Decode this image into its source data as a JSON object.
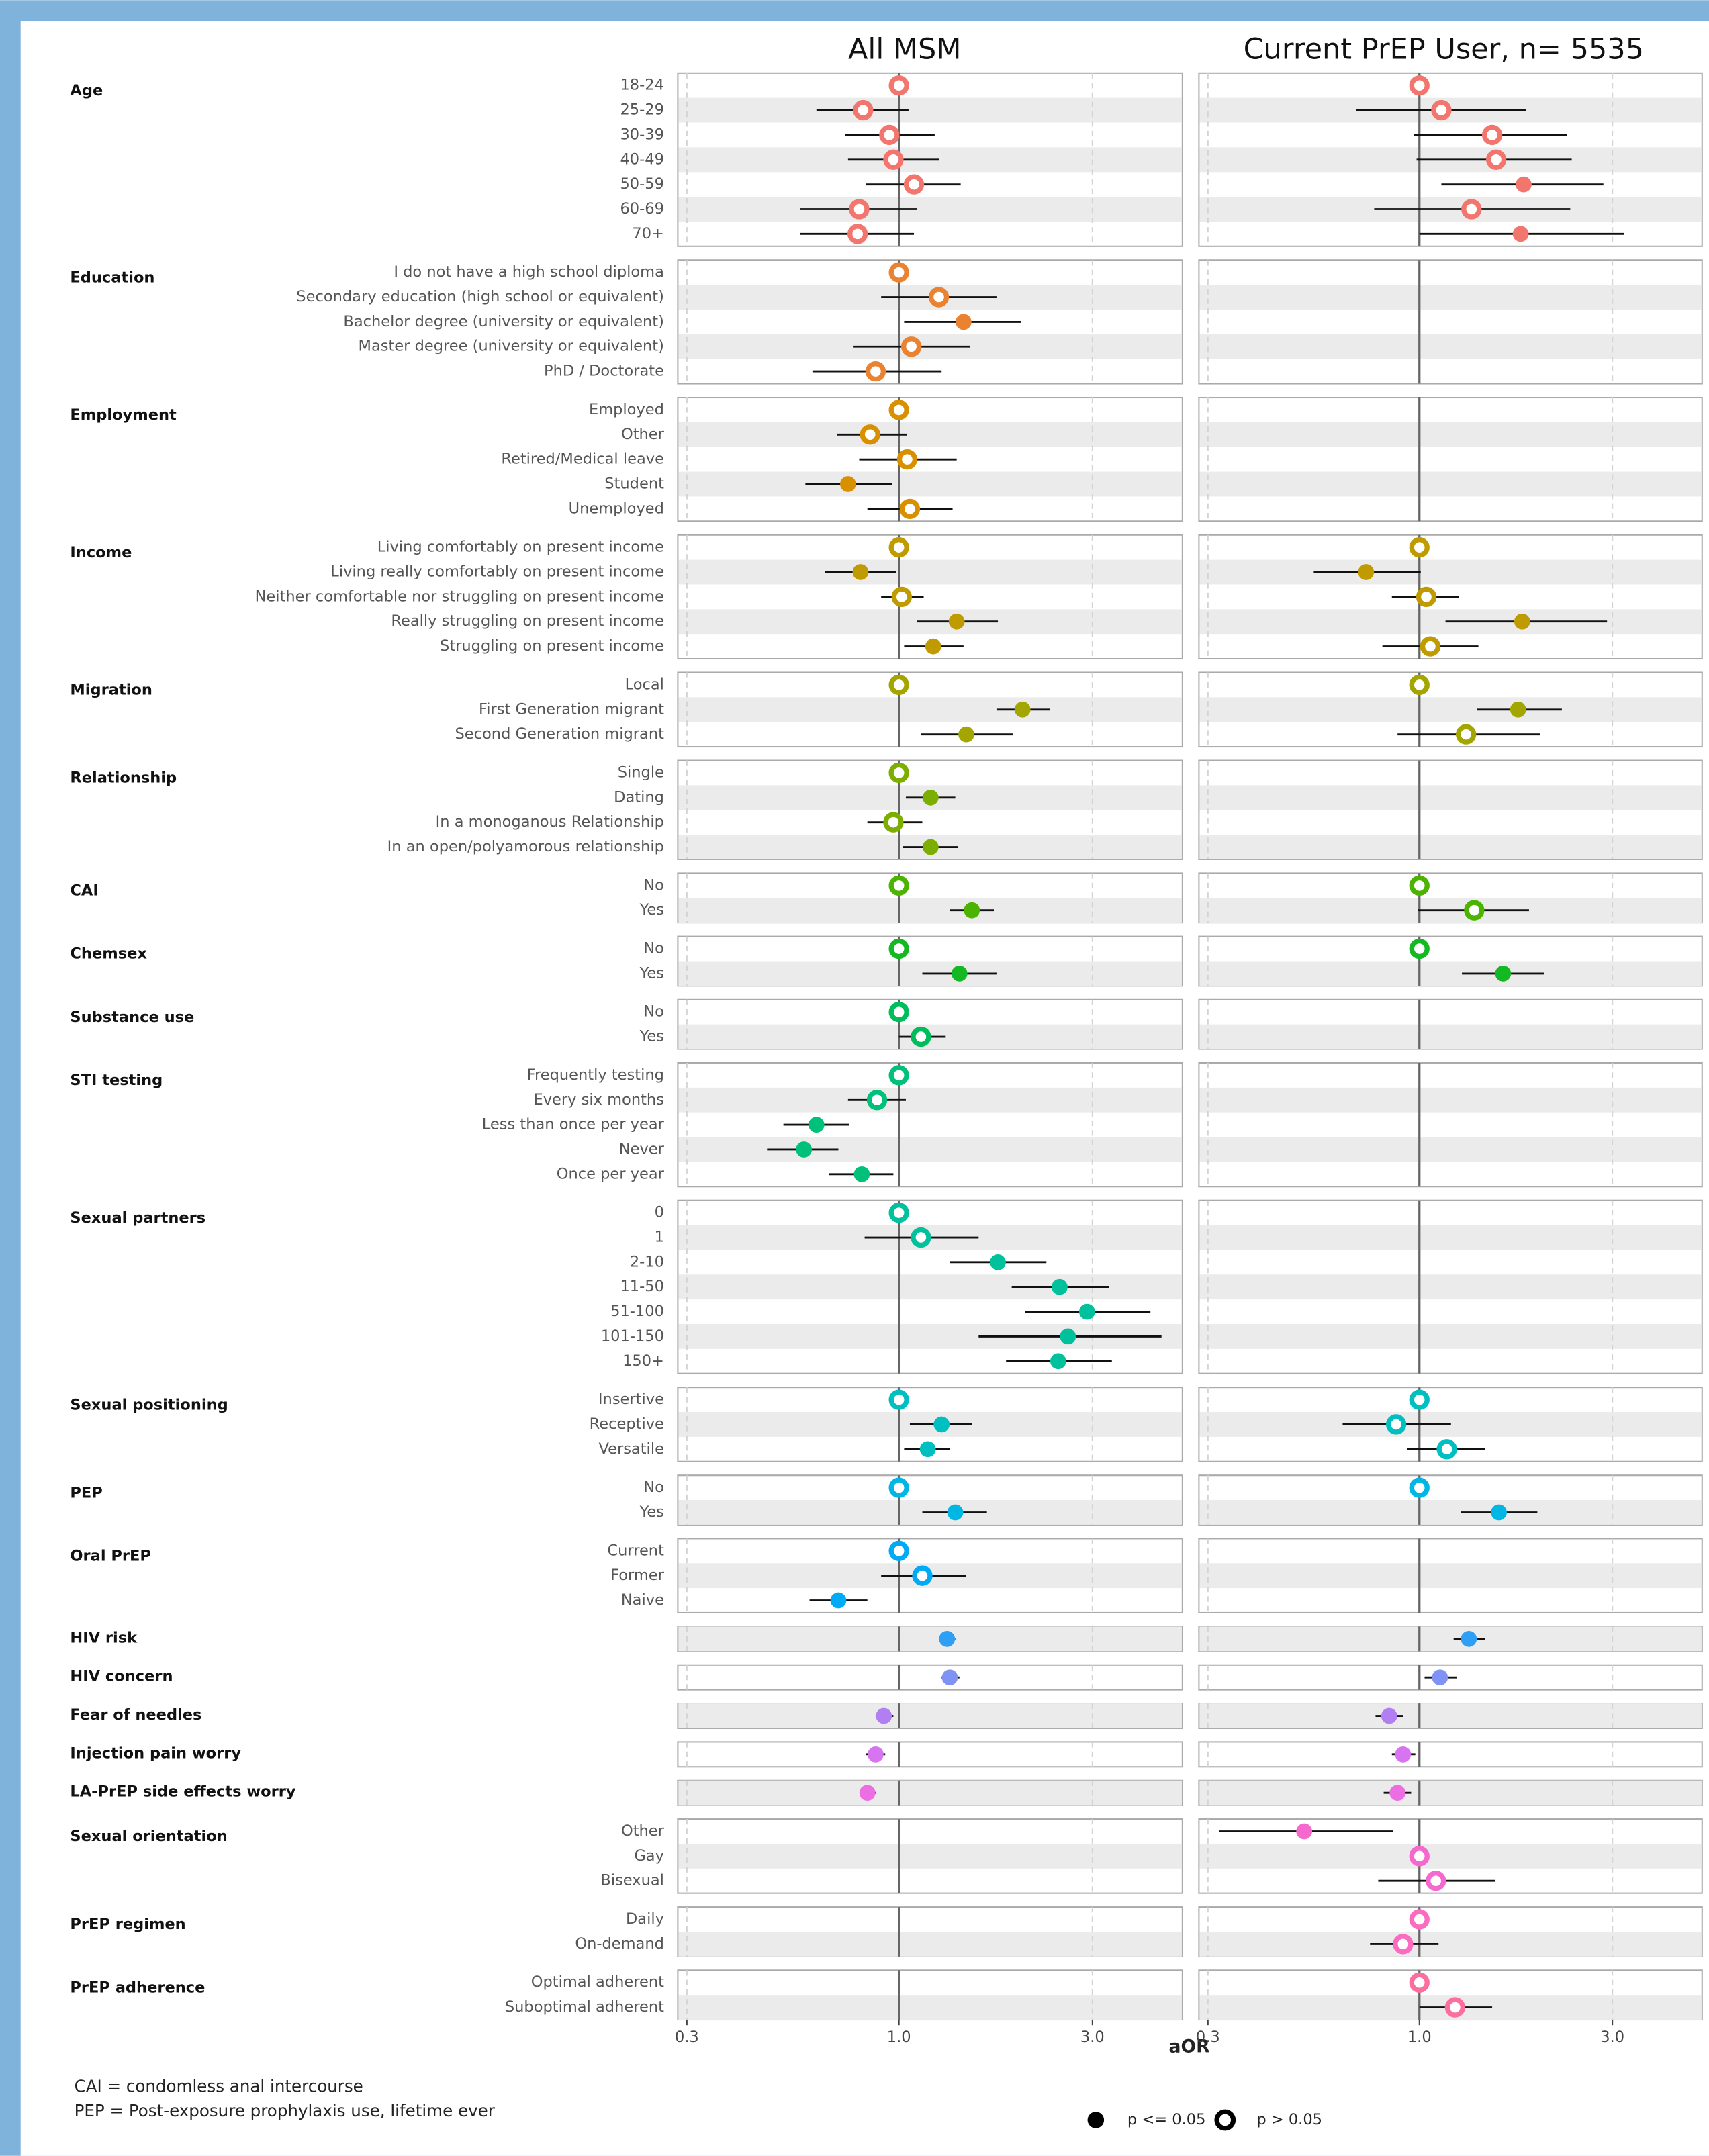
{
  "chart_data": {
    "type": "forest",
    "panel_titles": [
      "All MSM",
      "Current PrEP User, n= 5535"
    ],
    "xlabel": "aOR",
    "xlim": [
      0.285,
      5.0
    ],
    "log_x": true,
    "reference": 1,
    "xticks": [
      0.3,
      {
        "value": 1,
        "label": "1.0"
      },
      {
        "value": 3,
        "label": "3.0"
      }
    ],
    "legend": {
      "significant": "p <= 0.05",
      "not_significant": "p > 0.05"
    },
    "footnotes": [
      "CAI = condomless anal intercourse",
      "PEP = Post-exposure prophylaxis use, lifetime ever"
    ],
    "groups": [
      {
        "name": "Age",
        "color": "#f2766e",
        "categories": [
          "18-24",
          "25-29",
          "30-39",
          "40-49",
          "50-59",
          "60-69",
          "70+"
        ],
        "panels": [
          {
            "values": [
              1,
              0.816,
              0.947,
              0.969,
              1.089,
              0.798,
              0.791
            ],
            "lower": [
              null,
              0.626,
              0.738,
              0.749,
              0.829,
              0.57,
              0.57
            ],
            "upper": [
              null,
              1.056,
              1.225,
              1.254,
              1.42,
              1.107,
              1.089
            ],
            "significant": [
              false,
              false,
              false,
              false,
              false,
              false,
              false
            ]
          },
          {
            "values": [
              1,
              1.133,
              1.513,
              1.548,
              1.81,
              1.345,
              1.78
            ],
            "lower": [
              null,
              0.698,
              0.969,
              0.984,
              1.133,
              0.773,
              1.0
            ],
            "upper": [
              null,
              1.837,
              2.32,
              2.38,
              2.85,
              2.36,
              3.2
            ],
            "significant": [
              false,
              false,
              false,
              false,
              true,
              false,
              true
            ]
          }
        ]
      },
      {
        "name": "Education",
        "color": "#ea8331",
        "categories": [
          "I do not have a high school diploma",
          "Secondary education (high school or equivalent)",
          "Bachelor degree (university or equivalent)",
          "Master degree (university or equivalent)",
          "PhD / Doctorate"
        ],
        "panels": [
          {
            "values": [
              1,
              1.254,
              1.443,
              1.073,
              0.876
            ],
            "lower": [
              null,
              0.904,
              1.03,
              0.773,
              0.612
            ],
            "upper": [
              null,
              1.74,
              2.0,
              1.5,
              1.274
            ],
            "significant": [
              false,
              false,
              true,
              false,
              false
            ]
          },
          null
        ]
      },
      {
        "name": "Employment",
        "color": "#d89000",
        "categories": [
          "Employed",
          "Other",
          "Retired/Medical leave",
          "Student",
          "Unemployed"
        ],
        "panels": [
          {
            "values": [
              1,
              0.849,
              1.048,
              0.749,
              1.064
            ],
            "lower": [
              null,
              0.704,
              0.798,
              0.588,
              0.836
            ],
            "upper": [
              null,
              1.048,
              1.388,
              0.962,
              1.356
            ],
            "significant": [
              false,
              false,
              false,
              true,
              false
            ]
          },
          null
        ]
      },
      {
        "name": "Income",
        "color": "#c09b00",
        "categories": [
          "Living comfortably on present income",
          "Living really comfortably on present income",
          "Neither comfortable nor struggling on present income",
          "Really struggling on present income",
          "Struggling on present income"
        ],
        "panels": [
          {
            "values": [
              1,
              0.804,
              1.016,
              1.388,
              1.215
            ],
            "lower": [
              null,
              0.656,
              0.904,
              1.107,
              1.03
            ],
            "upper": [
              null,
              0.984,
              1.151,
              1.754,
              1.443
            ],
            "significant": [
              false,
              true,
              false,
              true,
              true
            ]
          },
          {
            "values": [
              1,
              0.738,
              1.04,
              1.795,
              1.064
            ],
            "lower": [
              null,
              0.548,
              0.855,
              1.16,
              0.81
            ],
            "upper": [
              null,
              1.008,
              1.254,
              2.91,
              1.399
            ],
            "significant": [
              false,
              true,
              false,
              true,
              false
            ]
          }
        ]
      },
      {
        "name": "Migration",
        "color": "#a3a500",
        "categories": [
          "Local",
          "First Generation migrant",
          "Second Generation migrant"
        ],
        "panels": [
          {
            "values": [
              1,
              2.017,
              1.466
            ],
            "lower": [
              null,
              1.74,
              1.133
            ],
            "upper": [
              null,
              2.36,
              1.91
            ],
            "significant": [
              false,
              true,
              true
            ]
          },
          {
            "values": [
              1,
              1.754,
              1.304
            ],
            "lower": [
              null,
              1.388,
              0.883
            ],
            "upper": [
              null,
              2.25,
              1.987
            ],
            "significant": [
              false,
              true,
              false
            ]
          }
        ]
      },
      {
        "name": "Relationship",
        "color": "#7cae00",
        "categories": [
          "Single",
          "Dating",
          "In a monoganous Relationship",
          "In an open/polyamorous relationship"
        ],
        "panels": [
          {
            "values": [
              1,
              1.197,
              0.969,
              1.197
            ],
            "lower": [
              null,
              1.04,
              0.836,
              1.024
            ],
            "upper": [
              null,
              1.377,
              1.142,
              1.399
            ],
            "significant": [
              false,
              true,
              false,
              true
            ]
          },
          null
        ]
      },
      {
        "name": "CAI",
        "color": "#4cb400",
        "categories": [
          "No",
          "Yes"
        ],
        "panels": [
          {
            "values": [
              1,
              1.513
            ],
            "lower": [
              null,
              1.335
            ],
            "upper": [
              null,
              1.714
            ],
            "significant": [
              false,
              true
            ]
          },
          {
            "values": [
              1,
              1.366
            ],
            "lower": [
              null,
              0.992
            ],
            "upper": [
              null,
              1.866
            ],
            "significant": [
              false,
              false
            ]
          }
        ]
      },
      {
        "name": "Chemsex",
        "color": "#13b822",
        "categories": [
          "No",
          "Yes"
        ],
        "panels": [
          {
            "values": [
              1,
              1.41
            ],
            "lower": [
              null,
              1.142
            ],
            "upper": [
              null,
              1.74
            ],
            "significant": [
              false,
              true
            ]
          },
          {
            "values": [
              1,
              1.61
            ],
            "lower": [
              null,
              1.274
            ],
            "upper": [
              null,
              2.03
            ],
            "significant": [
              false,
              true
            ]
          }
        ]
      },
      {
        "name": "Substance use",
        "color": "#00bd5c",
        "categories": [
          "No",
          "Yes"
        ],
        "panels": [
          {
            "values": [
              1,
              1.133
            ],
            "lower": [
              null,
              1.0
            ],
            "upper": [
              null,
              1.304
            ],
            "significant": [
              false,
              false
            ]
          },
          null
        ]
      },
      {
        "name": "STI testing",
        "color": "#00c07a",
        "categories": [
          "Frequently testing",
          "Every six months",
          "Less than once per year",
          "Never",
          "Once per year"
        ],
        "panels": [
          {
            "values": [
              1,
              0.883,
              0.626,
              0.583,
              0.81
            ],
            "lower": [
              null,
              0.749,
              0.519,
              0.473,
              0.671
            ],
            "upper": [
              null,
              1.04,
              0.755,
              0.709,
              0.969
            ],
            "significant": [
              false,
              false,
              true,
              true,
              true
            ]
          },
          null
        ]
      },
      {
        "name": "Sexual partners",
        "color": "#00c19c",
        "categories": [
          "0",
          "1",
          "2-10",
          "11-50",
          "51-100",
          "101-150",
          "150+"
        ],
        "panels": [
          {
            "values": [
              1,
              1.133,
              1.754,
              2.49,
              2.91,
              2.61,
              2.47
            ],
            "lower": [
              null,
              0.823,
              1.335,
              1.897,
              2.05,
              1.572,
              1.837
            ],
            "upper": [
              null,
              1.572,
              2.31,
              3.3,
              4.17,
              4.44,
              3.35
            ],
            "significant": [
              false,
              false,
              true,
              true,
              true,
              true,
              true
            ]
          },
          null
        ]
      },
      {
        "name": "Sexual positioning",
        "color": "#00bfc0",
        "categories": [
          "Insertive",
          "Receptive",
          "Versatile"
        ],
        "panels": [
          {
            "values": [
              1,
              1.274,
              1.178
            ],
            "lower": [
              null,
              1.064,
              1.03
            ],
            "upper": [
              null,
              1.513,
              1.335
            ],
            "significant": [
              false,
              true,
              true
            ]
          },
          {
            "values": [
              1,
              0.876,
              1.169
            ],
            "lower": [
              null,
              0.646,
              0.932
            ],
            "upper": [
              null,
              1.197,
              1.455
            ],
            "significant": [
              false,
              false,
              false
            ]
          }
        ]
      },
      {
        "name": "PEP",
        "color": "#00b7e4",
        "categories": [
          "No",
          "Yes"
        ],
        "panels": [
          {
            "values": [
              1,
              1.377
            ],
            "lower": [
              null,
              1.142
            ],
            "upper": [
              null,
              1.648
            ],
            "significant": [
              false,
              true
            ]
          },
          {
            "values": [
              1,
              1.572
            ],
            "lower": [
              null,
              1.264
            ],
            "upper": [
              null,
              1.957
            ],
            "significant": [
              false,
              true
            ]
          }
        ]
      },
      {
        "name": "Oral PrEP",
        "color": "#00aaf5",
        "categories": [
          "Current",
          "Former",
          "Naive"
        ],
        "panels": [
          {
            "values": [
              1,
              1.142,
              0.709
            ],
            "lower": [
              null,
              0.904,
              0.602
            ],
            "upper": [
              null,
              1.466,
              0.836
            ],
            "significant": [
              false,
              false,
              true
            ]
          },
          null
        ]
      },
      {
        "name": "HIV risk",
        "color": "#2e9ff5",
        "categories": [
          null
        ],
        "panels": [
          {
            "values": [
              1.314
            ],
            "lower": [
              1.254
            ],
            "upper": [
              1.377
            ],
            "significant": [
              true
            ]
          },
          {
            "values": [
              1.325
            ],
            "lower": [
              1.215
            ],
            "upper": [
              1.455
            ],
            "significant": [
              true
            ]
          }
        ]
      },
      {
        "name": "HIV concern",
        "color": "#7f93f5",
        "categories": [
          null
        ],
        "panels": [
          {
            "values": [
              1.335
            ],
            "lower": [
              1.274
            ],
            "upper": [
              1.41
            ],
            "significant": [
              true
            ]
          },
          {
            "values": [
              1.124
            ],
            "lower": [
              1.03
            ],
            "upper": [
              1.235
            ],
            "significant": [
              true
            ]
          }
        ]
      },
      {
        "name": "Fear of needles",
        "color": "#b17ff2",
        "categories": [
          null
        ],
        "panels": [
          {
            "values": [
              0.918
            ],
            "lower": [
              0.876
            ],
            "upper": [
              0.969
            ],
            "significant": [
              true
            ]
          },
          {
            "values": [
              0.842
            ],
            "lower": [
              0.779
            ],
            "upper": [
              0.911
            ],
            "significant": [
              true
            ]
          }
        ]
      },
      {
        "name": "Injection pain worry",
        "color": "#d774ef",
        "categories": [
          null
        ],
        "panels": [
          {
            "values": [
              0.876
            ],
            "lower": [
              0.829
            ],
            "upper": [
              0.925
            ],
            "significant": [
              true
            ]
          },
          {
            "values": [
              0.911
            ],
            "lower": [
              0.855
            ],
            "upper": [
              0.977
            ],
            "significant": [
              true
            ]
          }
        ]
      },
      {
        "name": "LA-PrEP side effects worry",
        "color": "#ec6ee2",
        "categories": [
          null
        ],
        "panels": [
          {
            "values": [
              0.836
            ],
            "lower": [
              0.804
            ],
            "upper": [
              0.876
            ],
            "significant": [
              true
            ]
          },
          {
            "values": [
              0.883
            ],
            "lower": [
              0.816
            ],
            "upper": [
              0.954
            ],
            "significant": [
              true
            ]
          }
        ]
      },
      {
        "name": "Sexual orientation",
        "color": "#f569cf",
        "categories": [
          "Other",
          "Gay",
          "Bisexual"
        ],
        "panels": [
          null,
          {
            "values": [
              0.519,
              1,
              1.098
            ],
            "lower": [
              0.32,
              null,
              0.791
            ],
            "upper": [
              0.862,
              null,
              1.536
            ],
            "significant": [
              true,
              false,
              false
            ]
          }
        ]
      },
      {
        "name": "PrEP regimen",
        "color": "#fb6bc0",
        "categories": [
          "Daily",
          "On-demand"
        ],
        "panels": [
          null,
          {
            "values": [
              1,
              0.911
            ],
            "lower": [
              null,
              0.755
            ],
            "upper": [
              null,
              1.115
            ],
            "significant": [
              false,
              false
            ]
          }
        ]
      },
      {
        "name": "PrEP adherence",
        "color": "#fb6f9f",
        "categories": [
          "Optimal adherent",
          "Suboptimal adherent"
        ],
        "panels": [
          null,
          {
            "values": [
              1,
              1.225
            ],
            "lower": [
              null,
              1.0
            ],
            "upper": [
              null,
              1.513
            ],
            "significant": [
              false,
              false
            ]
          }
        ]
      }
    ]
  }
}
